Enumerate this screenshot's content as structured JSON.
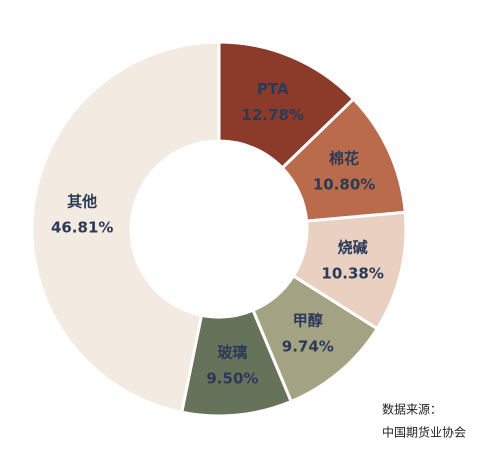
{
  "chart_data": {
    "type": "donut",
    "categories": [
      "PTA",
      "棉花",
      "烧碱",
      "甲醇",
      "玻璃",
      "其他"
    ],
    "values": [
      12.78,
      10.8,
      10.38,
      9.74,
      9.5,
      46.81
    ],
    "value_labels": [
      "12.78%",
      "10.80%",
      "10.38%",
      "9.74%",
      "9.50%",
      "46.81%"
    ],
    "colors": [
      "#8c3b2b",
      "#b96b4b",
      "#e9d0c1",
      "#a3a384",
      "#67725a",
      "#f3ebe2"
    ],
    "source": [
      "数据来源：",
      "中国期货业协会"
    ]
  }
}
